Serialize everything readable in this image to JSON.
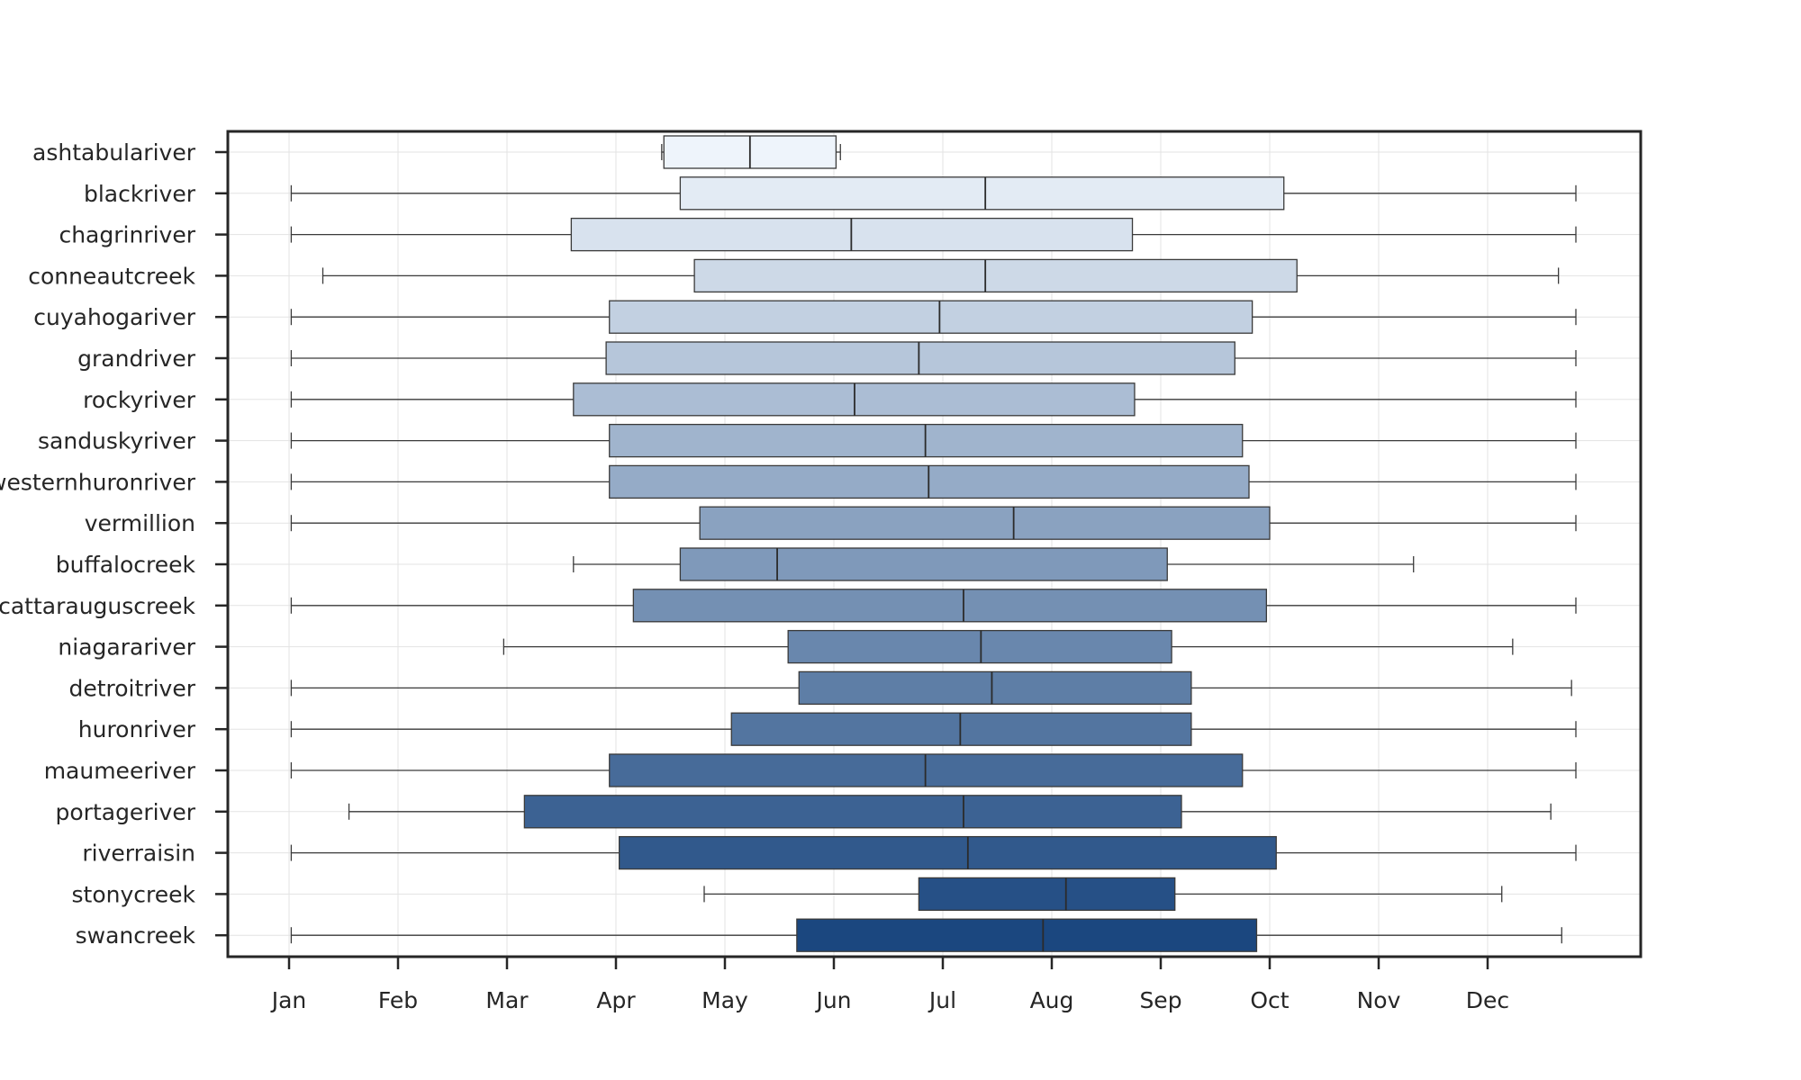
{
  "chart_data": {
    "type": "boxplot",
    "orientation": "horizontal",
    "title": "",
    "xlabel": "",
    "ylabel": "",
    "x_axis": {
      "ticks": [
        {
          "label": "Jan",
          "month": 1
        },
        {
          "label": "Feb",
          "month": 2
        },
        {
          "label": "Mar",
          "month": 3
        },
        {
          "label": "Apr",
          "month": 4
        },
        {
          "label": "May",
          "month": 5
        },
        {
          "label": "Jun",
          "month": 6
        },
        {
          "label": "Jul",
          "month": 7
        },
        {
          "label": "Aug",
          "month": 8
        },
        {
          "label": "Sep",
          "month": 9
        },
        {
          "label": "Oct",
          "month": 10
        },
        {
          "label": "Nov",
          "month": 11
        },
        {
          "label": "Dec",
          "month": 12
        }
      ],
      "range_months": [
        0.44,
        13.44
      ]
    },
    "grid": true,
    "colormap": "Blues",
    "color_start": "#eef4fb",
    "color_end": "#1b477f",
    "categories": [
      {
        "name": "ashtabulariver",
        "whisker_low": 4.42,
        "q1": 4.44,
        "median": 5.23,
        "q3": 6.02,
        "whisker_high": 6.06
      },
      {
        "name": "blackriver",
        "whisker_low": 1.02,
        "q1": 4.59,
        "median": 7.39,
        "q3": 10.13,
        "whisker_high": 12.81
      },
      {
        "name": "chagrinriver",
        "whisker_low": 1.02,
        "q1": 3.59,
        "median": 6.16,
        "q3": 8.74,
        "whisker_high": 12.81
      },
      {
        "name": "conneautcreek",
        "whisker_low": 1.31,
        "q1": 4.72,
        "median": 7.39,
        "q3": 10.25,
        "whisker_high": 12.65
      },
      {
        "name": "cuyahogariver",
        "whisker_low": 1.02,
        "q1": 3.94,
        "median": 6.97,
        "q3": 9.84,
        "whisker_high": 12.81
      },
      {
        "name": "grandriver",
        "whisker_low": 1.02,
        "q1": 3.91,
        "median": 6.78,
        "q3": 9.68,
        "whisker_high": 12.81
      },
      {
        "name": "rockyriver",
        "whisker_low": 1.02,
        "q1": 3.61,
        "median": 6.19,
        "q3": 8.76,
        "whisker_high": 12.81
      },
      {
        "name": "sanduskyriver",
        "whisker_low": 1.02,
        "q1": 3.94,
        "median": 6.84,
        "q3": 9.75,
        "whisker_high": 12.81
      },
      {
        "name": "westernhuronriver",
        "whisker_low": 1.02,
        "q1": 3.94,
        "median": 6.87,
        "q3": 9.81,
        "whisker_high": 12.81
      },
      {
        "name": "vermillion",
        "whisker_low": 1.02,
        "q1": 4.77,
        "median": 7.65,
        "q3": 10.0,
        "whisker_high": 12.81
      },
      {
        "name": "buffalocreek",
        "whisker_low": 3.61,
        "q1": 4.59,
        "median": 5.48,
        "q3": 9.06,
        "whisker_high": 11.32
      },
      {
        "name": "cattarauguscreek",
        "whisker_low": 1.02,
        "q1": 4.16,
        "median": 7.19,
        "q3": 9.97,
        "whisker_high": 12.81
      },
      {
        "name": "niagarariver",
        "whisker_low": 2.97,
        "q1": 5.58,
        "median": 7.35,
        "q3": 9.1,
        "whisker_high": 12.23
      },
      {
        "name": "detroitriver",
        "whisker_low": 1.02,
        "q1": 5.68,
        "median": 7.45,
        "q3": 9.28,
        "whisker_high": 12.77
      },
      {
        "name": "huronriver",
        "whisker_low": 1.02,
        "q1": 5.06,
        "median": 7.16,
        "q3": 9.28,
        "whisker_high": 12.81
      },
      {
        "name": "maumeeriver",
        "whisker_low": 1.02,
        "q1": 3.94,
        "median": 6.84,
        "q3": 9.75,
        "whisker_high": 12.81
      },
      {
        "name": "portageriver",
        "whisker_low": 1.55,
        "q1": 3.16,
        "median": 7.19,
        "q3": 9.19,
        "whisker_high": 12.58
      },
      {
        "name": "riverraisin",
        "whisker_low": 1.02,
        "q1": 4.03,
        "median": 7.23,
        "q3": 10.06,
        "whisker_high": 12.81
      },
      {
        "name": "stonycreek",
        "whisker_low": 4.81,
        "q1": 6.78,
        "median": 8.13,
        "q3": 9.13,
        "whisker_high": 12.13
      },
      {
        "name": "swancreek",
        "whisker_low": 1.02,
        "q1": 5.66,
        "median": 7.92,
        "q3": 9.88,
        "whisker_high": 12.68
      }
    ]
  }
}
